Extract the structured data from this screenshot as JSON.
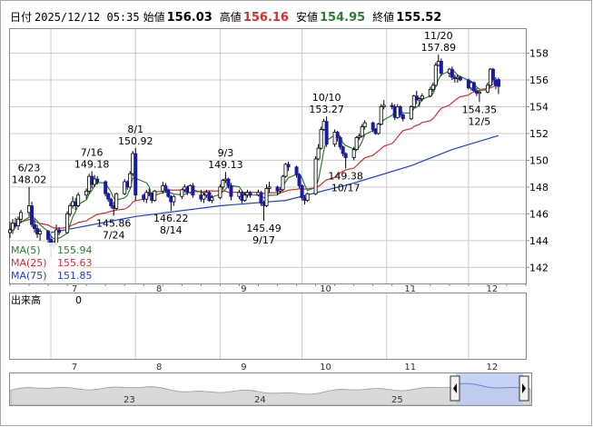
{
  "header": {
    "date_label": "日付",
    "datetime": "2025/12/12 05:35",
    "open_label": "始値",
    "open_value": "156.03",
    "high_label": "高値",
    "high_value": "156.16",
    "low_label": "安値",
    "low_value": "154.95",
    "close_label": "終値",
    "close_value": "155.52"
  },
  "legend": [
    {
      "label": "MA(5)",
      "value": "155.94",
      "color": "#2e7d32"
    },
    {
      "label": "MA(25)",
      "value": "155.63",
      "color": "#d32f2f"
    },
    {
      "label": "MA(75)",
      "value": "151.85",
      "color": "#1f3fd6"
    }
  ],
  "volume": {
    "label": "出来高",
    "value": "0"
  },
  "navigator": {
    "labels": [
      "23",
      "24",
      "25"
    ]
  },
  "colors": {
    "up": "#ffffff",
    "down": "#1a1aa8",
    "ma5": "#2e7d32",
    "ma25": "#d32f2f",
    "ma75": "#1f3fd6",
    "grid": "#cccccc"
  },
  "chart_data": {
    "type": "candlestick",
    "x_tick_labels": [
      "7",
      "8",
      "9",
      "10",
      "11",
      "12"
    ],
    "y_tick_labels": [
      "158",
      "156",
      "154",
      "152",
      "150",
      "148",
      "146",
      "144",
      "142"
    ],
    "ylim": [
      140.8,
      159.8
    ],
    "grid": true,
    "x_range": [
      "2025-06-16",
      "2025-12-22"
    ],
    "annotations": [
      {
        "date": "2025-06-23",
        "value": 148.02,
        "date_label": "6/23",
        "value_label": "148.02",
        "position": "above"
      },
      {
        "date": "2025-07-16",
        "value": 149.18,
        "date_label": "7/16",
        "value_label": "149.18",
        "position": "above"
      },
      {
        "date": "2025-07-24",
        "value": 145.86,
        "date_label": "7/24",
        "value_label": "145.86",
        "position": "below"
      },
      {
        "date": "2025-08-01",
        "value": 150.92,
        "date_label": "8/1",
        "value_label": "150.92",
        "position": "above"
      },
      {
        "date": "2025-08-14",
        "value": 146.22,
        "date_label": "8/14",
        "value_label": "146.22",
        "position": "below"
      },
      {
        "date": "2025-09-03",
        "value": 149.13,
        "date_label": "9/3",
        "value_label": "149.13",
        "position": "above"
      },
      {
        "date": "2025-09-17",
        "value": 145.49,
        "date_label": "9/17",
        "value_label": "145.49",
        "position": "below"
      },
      {
        "date": "2025-10-10",
        "value": 153.27,
        "date_label": "10/10",
        "value_label": "153.27",
        "position": "above"
      },
      {
        "date": "2025-10-17",
        "value": 149.38,
        "date_label": "10/17",
        "value_label": "149.38",
        "position": "below"
      },
      {
        "date": "2025-11-20",
        "value": 157.89,
        "date_label": "11/20",
        "value_label": "157.89",
        "position": "above"
      },
      {
        "date": "2025-12-05",
        "value": 154.35,
        "date_label": "12/5",
        "value_label": "154.35",
        "position": "below"
      }
    ],
    "candles": [
      [
        "2025-06-16",
        144.6,
        145.4,
        144.2,
        144.8
      ],
      [
        "2025-06-17",
        144.8,
        145.6,
        144.5,
        145.3
      ],
      [
        "2025-06-18",
        145.3,
        145.7,
        144.9,
        145.1
      ],
      [
        "2025-06-19",
        145.1,
        145.8,
        144.8,
        145.6
      ],
      [
        "2025-06-20",
        145.6,
        146.3,
        145.3,
        146.1
      ],
      [
        "2025-06-23",
        146.1,
        148.02,
        145.8,
        146.6
      ],
      [
        "2025-06-24",
        146.6,
        146.9,
        145.0,
        145.2
      ],
      [
        "2025-06-25",
        145.2,
        145.6,
        144.6,
        144.9
      ],
      [
        "2025-06-26",
        144.9,
        145.2,
        144.2,
        144.5
      ],
      [
        "2025-06-27",
        144.5,
        144.9,
        144.0,
        144.7
      ],
      [
        "2025-06-30",
        144.7,
        144.8,
        143.8,
        144.1
      ],
      [
        "2025-07-01",
        144.1,
        144.3,
        142.7,
        143.6
      ],
      [
        "2025-07-02",
        143.6,
        144.0,
        143.4,
        143.8
      ],
      [
        "2025-07-03",
        143.8,
        145.2,
        143.6,
        144.8
      ],
      [
        "2025-07-04",
        144.8,
        145.0,
        144.4,
        144.6
      ],
      [
        "2025-07-07",
        144.6,
        146.2,
        144.5,
        146.0
      ],
      [
        "2025-07-08",
        146.0,
        146.8,
        145.8,
        146.6
      ],
      [
        "2025-07-09",
        146.6,
        147.3,
        146.4,
        146.9
      ],
      [
        "2025-07-10",
        146.9,
        147.2,
        146.3,
        146.6
      ],
      [
        "2025-07-11",
        146.6,
        147.6,
        146.5,
        147.4
      ],
      [
        "2025-07-14",
        147.4,
        147.9,
        147.1,
        147.7
      ],
      [
        "2025-07-15",
        147.7,
        149.0,
        147.5,
        148.8
      ],
      [
        "2025-07-16",
        148.8,
        149.18,
        147.9,
        148.2
      ],
      [
        "2025-07-17",
        148.2,
        148.9,
        148.0,
        148.6
      ],
      [
        "2025-07-18",
        148.6,
        148.8,
        148.2,
        148.4
      ],
      [
        "2025-07-21",
        148.4,
        148.5,
        147.3,
        147.5
      ],
      [
        "2025-07-22",
        147.5,
        147.6,
        146.9,
        147.1
      ],
      [
        "2025-07-23",
        147.1,
        147.2,
        146.4,
        146.6
      ],
      [
        "2025-07-24",
        146.6,
        146.9,
        145.86,
        146.4
      ],
      [
        "2025-07-25",
        146.4,
        147.6,
        146.3,
        147.5
      ],
      [
        "2025-07-28",
        147.5,
        148.6,
        147.4,
        148.4
      ],
      [
        "2025-07-29",
        148.4,
        148.5,
        147.8,
        148.0
      ],
      [
        "2025-07-30",
        148.0,
        149.2,
        147.9,
        149.0
      ],
      [
        "2025-07-31",
        149.0,
        150.7,
        148.8,
        150.5
      ],
      [
        "2025-08-01",
        150.5,
        150.92,
        147.0,
        147.4
      ],
      [
        "2025-08-04",
        147.4,
        147.5,
        146.9,
        147.1
      ],
      [
        "2025-08-05",
        147.1,
        147.8,
        146.8,
        147.6
      ],
      [
        "2025-08-06",
        147.6,
        147.9,
        147.3,
        147.5
      ],
      [
        "2025-08-07",
        147.5,
        147.6,
        146.8,
        147.0
      ],
      [
        "2025-08-08",
        147.0,
        147.8,
        146.9,
        147.7
      ],
      [
        "2025-08-11",
        147.7,
        148.4,
        147.5,
        148.1
      ],
      [
        "2025-08-12",
        148.1,
        148.3,
        147.6,
        147.8
      ],
      [
        "2025-08-13",
        147.8,
        147.9,
        147.2,
        147.3
      ],
      [
        "2025-08-14",
        147.3,
        147.4,
        146.22,
        146.9
      ],
      [
        "2025-08-15",
        146.9,
        147.4,
        146.6,
        147.3
      ],
      [
        "2025-08-18",
        147.3,
        147.9,
        147.1,
        147.8
      ],
      [
        "2025-08-19",
        147.8,
        148.2,
        147.6,
        148.0
      ],
      [
        "2025-08-20",
        148.0,
        148.1,
        147.4,
        147.6
      ],
      [
        "2025-08-21",
        147.6,
        148.2,
        147.5,
        148.1
      ],
      [
        "2025-08-22",
        148.1,
        148.3,
        147.2,
        147.4
      ],
      [
        "2025-08-25",
        147.4,
        147.8,
        146.9,
        147.1
      ],
      [
        "2025-08-26",
        147.1,
        147.6,
        146.8,
        147.4
      ],
      [
        "2025-08-27",
        147.4,
        147.8,
        147.2,
        147.6
      ],
      [
        "2025-08-28",
        147.6,
        147.7,
        146.9,
        147.0
      ],
      [
        "2025-08-29",
        147.0,
        147.4,
        146.8,
        147.2
      ],
      [
        "2025-09-01",
        147.2,
        148.2,
        147.1,
        148.0
      ],
      [
        "2025-09-02",
        148.0,
        148.6,
        147.8,
        148.5
      ],
      [
        "2025-09-03",
        148.5,
        149.13,
        148.3,
        148.6
      ],
      [
        "2025-09-04",
        148.6,
        148.7,
        147.9,
        148.1
      ],
      [
        "2025-09-05",
        148.1,
        148.3,
        147.0,
        147.3
      ],
      [
        "2025-09-08",
        147.3,
        147.8,
        147.1,
        147.6
      ],
      [
        "2025-09-09",
        147.6,
        147.7,
        146.8,
        147.0
      ],
      [
        "2025-09-10",
        147.0,
        147.6,
        146.9,
        147.4
      ],
      [
        "2025-09-11",
        147.4,
        147.8,
        147.2,
        147.6
      ],
      [
        "2025-09-12",
        147.6,
        147.7,
        147.2,
        147.4
      ],
      [
        "2025-09-15",
        147.4,
        147.8,
        147.3,
        147.6
      ],
      [
        "2025-09-16",
        147.6,
        147.7,
        146.6,
        146.8
      ],
      [
        "2025-09-17",
        146.8,
        147.0,
        145.49,
        146.6
      ],
      [
        "2025-09-18",
        146.6,
        148.2,
        146.5,
        147.9
      ],
      [
        "2025-09-19",
        147.9,
        148.4,
        147.6,
        148.0
      ],
      [
        "2025-09-22",
        148.0,
        148.1,
        147.4,
        147.7
      ],
      [
        "2025-09-23",
        147.7,
        148.0,
        147.5,
        147.8
      ],
      [
        "2025-09-24",
        147.8,
        148.9,
        147.7,
        148.8
      ],
      [
        "2025-09-25",
        148.8,
        149.8,
        148.7,
        149.7
      ],
      [
        "2025-09-26",
        149.7,
        149.9,
        149.2,
        149.5
      ],
      [
        "2025-09-29",
        149.5,
        149.6,
        148.7,
        148.9
      ],
      [
        "2025-09-30",
        148.9,
        149.0,
        147.9,
        148.1
      ],
      [
        "2025-10-01",
        148.1,
        148.2,
        147.0,
        147.2
      ],
      [
        "2025-10-02",
        147.2,
        147.4,
        146.7,
        147.0
      ],
      [
        "2025-10-03",
        147.0,
        147.6,
        146.9,
        147.5
      ],
      [
        "2025-10-06",
        147.5,
        150.3,
        147.4,
        150.1
      ],
      [
        "2025-10-07",
        150.1,
        151.2,
        150.0,
        150.9
      ],
      [
        "2025-10-08",
        150.9,
        152.5,
        150.8,
        152.3
      ],
      [
        "2025-10-09",
        152.3,
        153.1,
        152.2,
        152.9
      ],
      [
        "2025-10-10",
        152.9,
        153.27,
        151.0,
        151.2
      ],
      [
        "2025-10-13",
        151.2,
        152.3,
        151.0,
        152.1
      ],
      [
        "2025-10-14",
        152.1,
        152.2,
        151.4,
        151.7
      ],
      [
        "2025-10-15",
        151.7,
        151.8,
        150.8,
        151.0
      ],
      [
        "2025-10-16",
        151.0,
        151.1,
        150.3,
        150.5
      ],
      [
        "2025-10-17",
        150.5,
        150.6,
        149.38,
        150.2
      ],
      [
        "2025-10-20",
        150.2,
        151.0,
        150.0,
        150.8
      ],
      [
        "2025-10-21",
        150.8,
        151.8,
        150.7,
        151.7
      ],
      [
        "2025-10-22",
        151.7,
        152.0,
        151.5,
        151.8
      ],
      [
        "2025-10-23",
        151.8,
        152.7,
        151.7,
        152.5
      ],
      [
        "2025-10-24",
        152.5,
        153.0,
        152.3,
        152.8
      ],
      [
        "2025-10-27",
        152.8,
        152.9,
        152.1,
        152.3
      ],
      [
        "2025-10-28",
        152.3,
        152.4,
        151.9,
        152.0
      ],
      [
        "2025-10-29",
        152.0,
        152.8,
        151.9,
        152.7
      ],
      [
        "2025-10-30",
        152.7,
        154.2,
        152.6,
        154.0
      ],
      [
        "2025-10-31",
        154.0,
        154.5,
        153.8,
        154.1
      ],
      [
        "2025-11-03",
        154.1,
        154.3,
        153.8,
        154.0
      ],
      [
        "2025-11-04",
        154.0,
        154.2,
        153.0,
        153.2
      ],
      [
        "2025-11-05",
        153.2,
        154.2,
        153.1,
        154.0
      ],
      [
        "2025-11-06",
        154.0,
        154.1,
        153.2,
        153.4
      ],
      [
        "2025-11-07",
        153.4,
        153.5,
        152.9,
        153.1
      ],
      [
        "2025-11-10",
        153.1,
        154.1,
        153.0,
        154.0
      ],
      [
        "2025-11-11",
        154.0,
        154.9,
        153.9,
        154.8
      ],
      [
        "2025-11-12",
        154.8,
        155.2,
        154.2,
        154.5
      ],
      [
        "2025-11-13",
        154.5,
        154.7,
        154.0,
        154.6
      ],
      [
        "2025-11-14",
        154.6,
        155.0,
        154.4,
        154.8
      ],
      [
        "2025-11-17",
        154.8,
        155.5,
        154.7,
        155.3
      ],
      [
        "2025-11-18",
        155.3,
        155.8,
        155.1,
        155.6
      ],
      [
        "2025-11-19",
        155.6,
        157.3,
        155.5,
        157.1
      ],
      [
        "2025-11-20",
        157.1,
        157.89,
        157.0,
        157.4
      ],
      [
        "2025-11-21",
        157.4,
        157.6,
        156.3,
        156.5
      ],
      [
        "2025-11-24",
        156.5,
        156.9,
        156.2,
        156.8
      ],
      [
        "2025-11-25",
        156.8,
        157.0,
        156.0,
        156.2
      ],
      [
        "2025-11-26",
        156.2,
        156.4,
        155.8,
        156.1
      ],
      [
        "2025-11-27",
        156.1,
        156.4,
        155.8,
        156.2
      ],
      [
        "2025-11-28",
        156.2,
        156.3,
        155.9,
        156.0
      ],
      [
        "2025-12-01",
        156.0,
        156.1,
        155.3,
        155.4
      ],
      [
        "2025-12-02",
        155.4,
        155.9,
        155.2,
        155.8
      ],
      [
        "2025-12-03",
        155.8,
        155.9,
        155.1,
        155.2
      ],
      [
        "2025-12-04",
        155.2,
        155.4,
        154.8,
        155.0
      ],
      [
        "2025-12-05",
        155.0,
        155.2,
        154.35,
        155.1
      ],
      [
        "2025-12-08",
        155.1,
        155.8,
        155.0,
        155.6
      ],
      [
        "2025-12-09",
        155.6,
        156.9,
        155.5,
        156.8
      ],
      [
        "2025-12-10",
        156.8,
        156.9,
        155.8,
        156.0
      ],
      [
        "2025-12-11",
        156.0,
        156.2,
        155.3,
        155.6
      ],
      [
        "2025-12-12",
        156.03,
        156.16,
        154.95,
        155.52
      ]
    ],
    "ma75_anchors": [
      [
        "2025-07-01",
        144.6
      ],
      [
        "2025-08-01",
        145.8
      ],
      [
        "2025-09-01",
        146.6
      ],
      [
        "2025-09-25",
        147.0
      ],
      [
        "2025-10-20",
        148.3
      ],
      [
        "2025-11-10",
        149.6
      ],
      [
        "2025-11-25",
        150.8
      ],
      [
        "2025-12-12",
        151.85
      ]
    ]
  }
}
